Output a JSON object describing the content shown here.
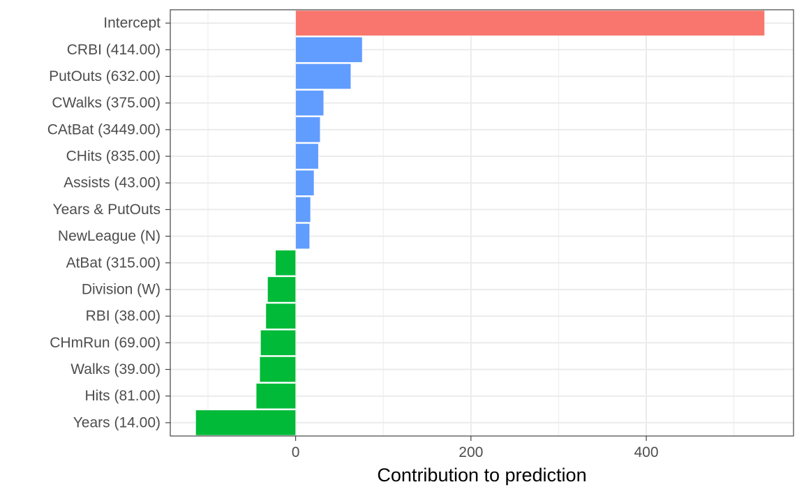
{
  "chart_data": {
    "type": "bar",
    "orientation": "horizontal",
    "title": "",
    "xlabel": "Contribution to prediction",
    "ylabel": "",
    "xlim": [
      -143,
      568
    ],
    "x_ticks": [
      0,
      200,
      400
    ],
    "grid": true,
    "legend": "none",
    "categories": [
      "Intercept",
      "CRBI (414.00)",
      "PutOuts (632.00)",
      "CWalks (375.00)",
      "CAtBat (3449.00)",
      "CHits (835.00)",
      "Assists (43.00)",
      "Years & PutOuts",
      "NewLeague (N)",
      "AtBat (315.00)",
      "Division (W)",
      "RBI (38.00)",
      "CHmRun (69.00)",
      "Walks (39.00)",
      "Hits (81.00)",
      "Years (14.00)"
    ],
    "values": [
      535,
      76,
      63,
      32,
      28,
      26,
      21,
      17,
      16,
      -23,
      -32,
      -34,
      -40,
      -41,
      -45,
      -114
    ],
    "colors": {
      "intercept": "#F8766D",
      "positive": "#619CFF",
      "negative": "#00BA38",
      "grid": "#ebebeb",
      "panel_border": "#333333"
    }
  }
}
